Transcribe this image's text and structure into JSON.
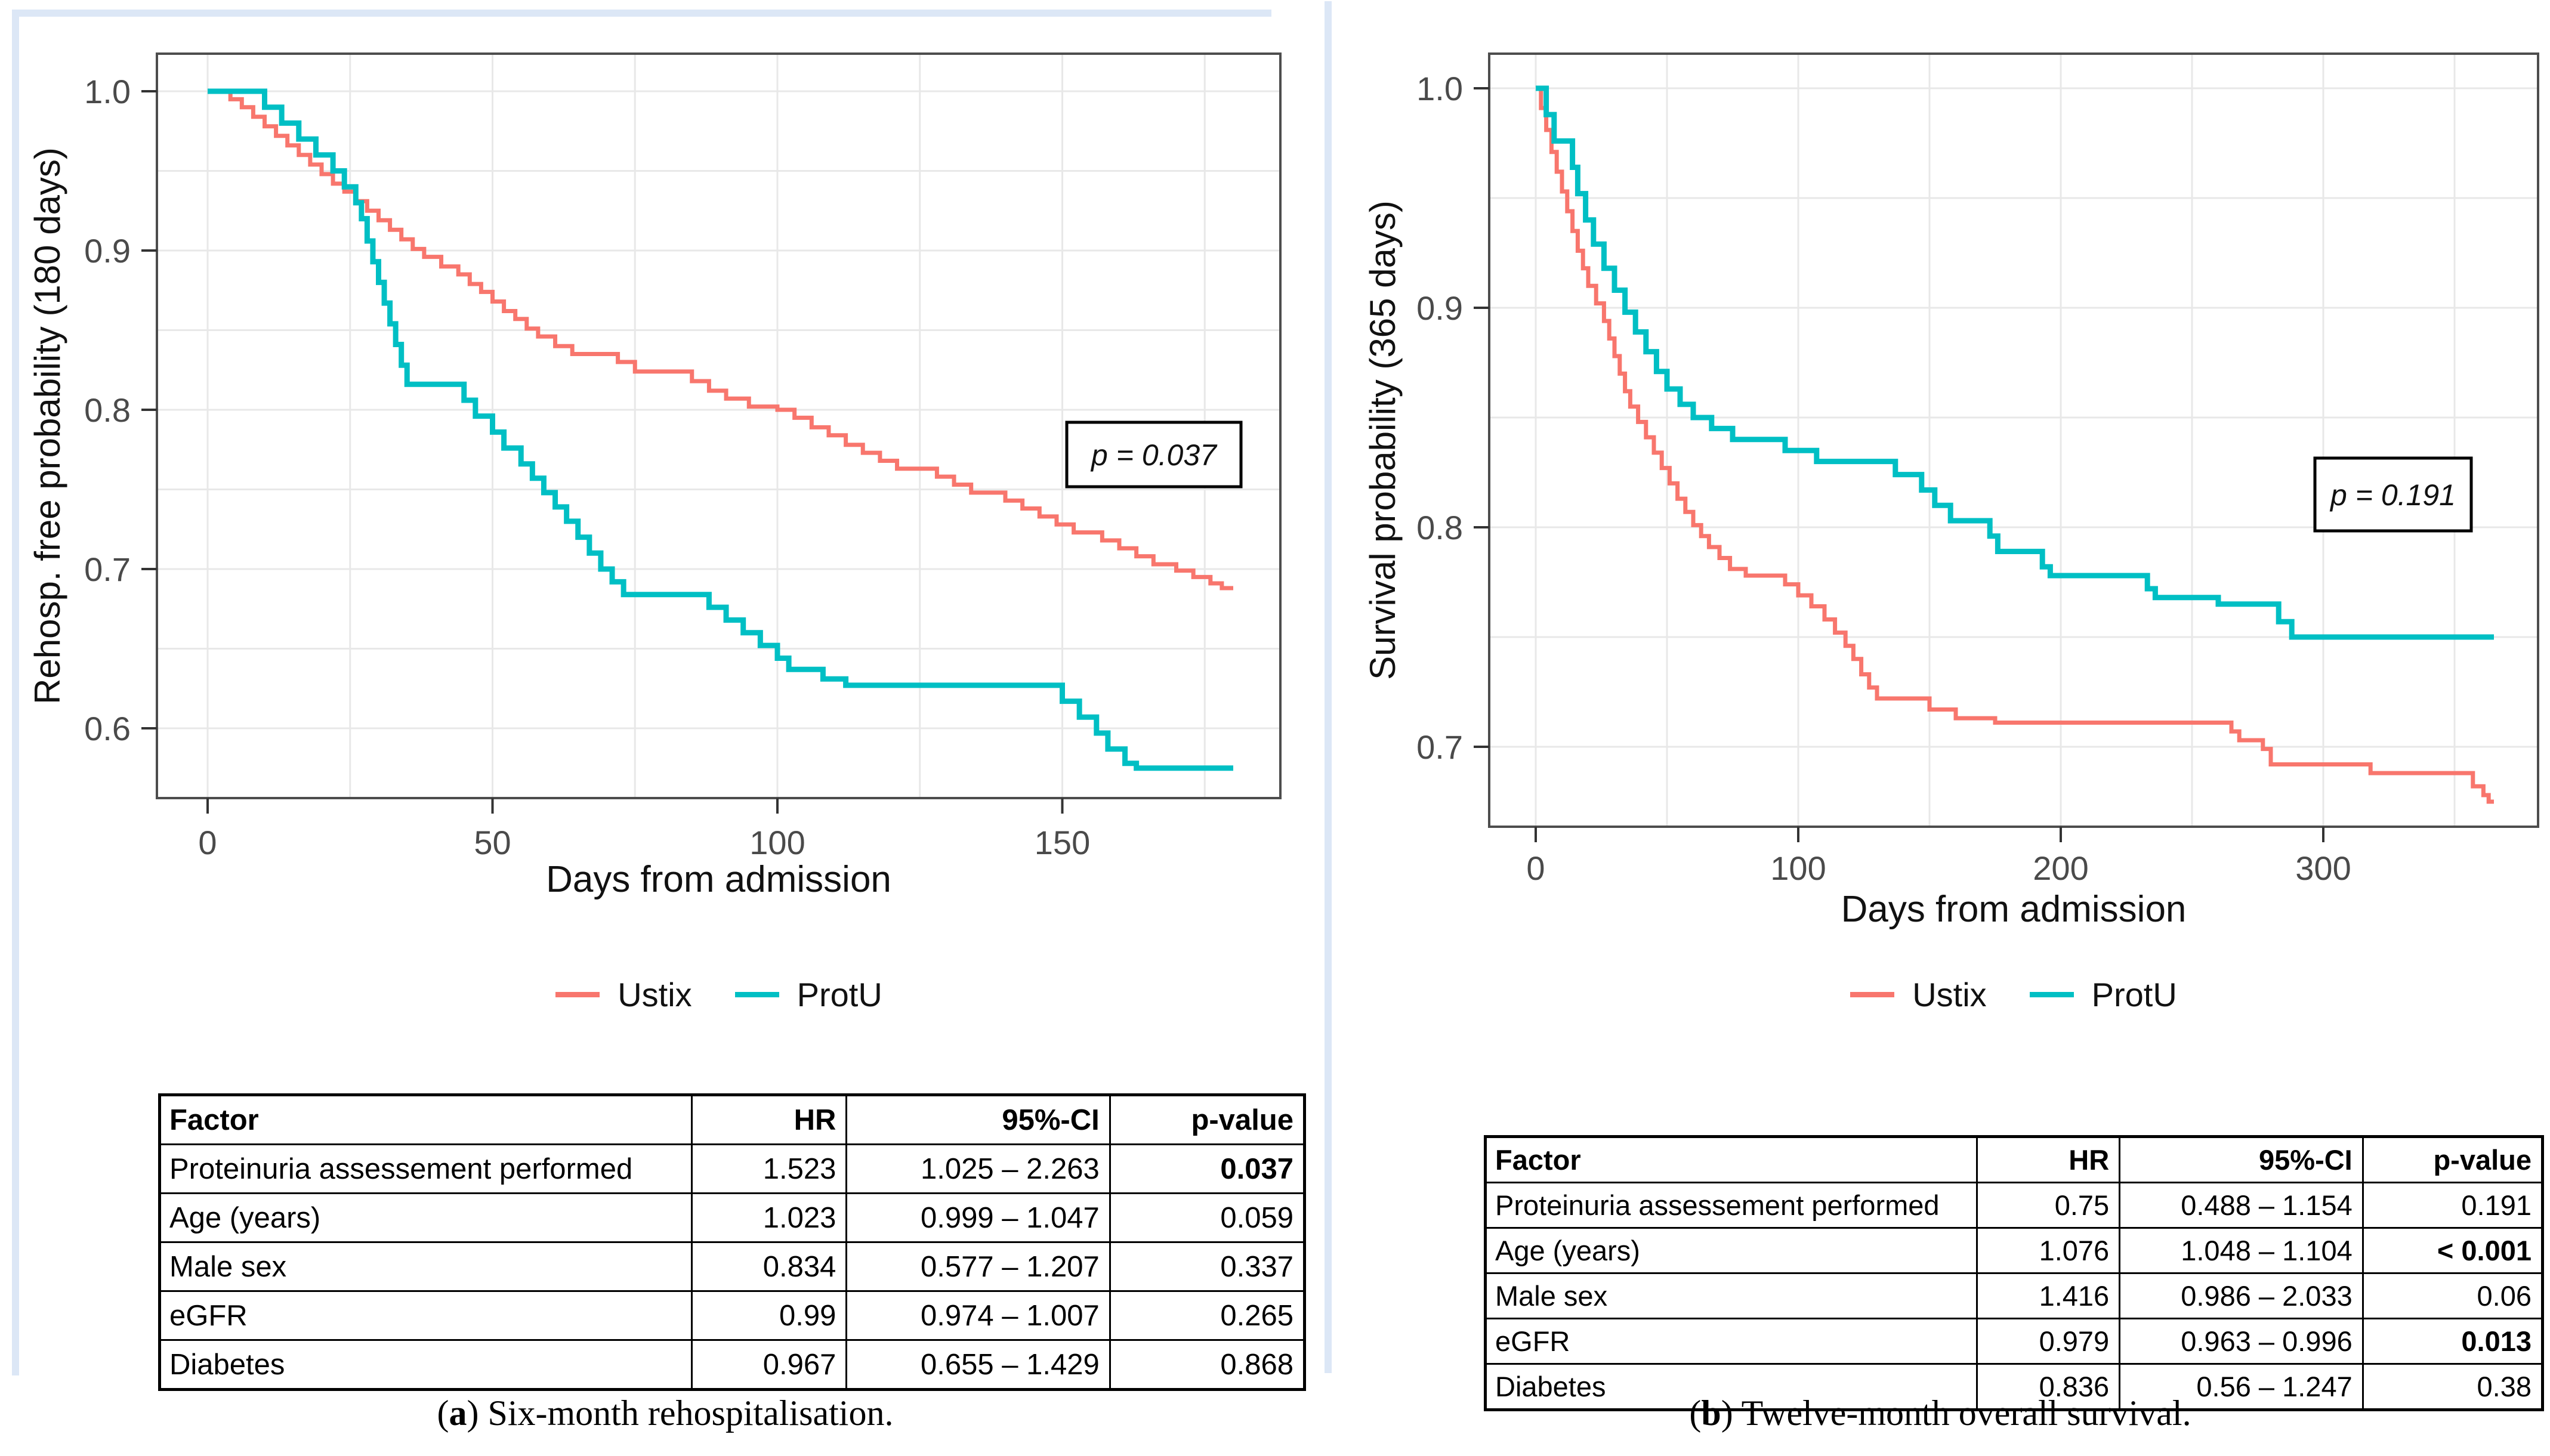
{
  "colors": {
    "ustix": "#F8766D",
    "protu": "#00BFC4",
    "grid": "#E8E8E8",
    "panel_border": "#4D4D4D",
    "tick": "#333333",
    "tick_text": "#4A4A4A",
    "title_text": "#111111",
    "highlight": "#DCE7F6"
  },
  "panels": [
    {
      "id": "a",
      "y_axis_title": "Rehosp. free probability (180 days)",
      "x_axis_title": "Days from admission",
      "x_tick_labels": [
        "0",
        "50",
        "100",
        "150"
      ],
      "y_tick_labels": [
        "1.0",
        "0.9",
        "0.8",
        "0.7",
        "0.6"
      ],
      "p_annotation": "p = 0.037",
      "legend": [
        {
          "label": "Ustix",
          "color_key": "ustix"
        },
        {
          "label": "ProtU",
          "color_key": "protu"
        }
      ],
      "caption": {
        "pre": "(",
        "letter": "a",
        "rest": ") Six-month rehospitalisation."
      },
      "table": {
        "headers": [
          "Factor",
          "HR",
          "95%-CI",
          "p-value"
        ],
        "rows": [
          [
            "Proteinuria assessement performed",
            "1.523",
            "1.025 – 2.263",
            "0.037"
          ],
          [
            "Age (years)",
            "1.023",
            "0.999 – 1.047",
            "0.059"
          ],
          [
            "Male sex",
            "0.834",
            "0.577 – 1.207",
            "0.337"
          ],
          [
            "eGFR",
            "0.99",
            "0.974 – 1.007",
            "0.265"
          ],
          [
            "Diabetes",
            "0.967",
            "0.655 – 1.429",
            "0.868"
          ]
        ],
        "bold_p_rows": [
          0
        ]
      }
    },
    {
      "id": "b",
      "y_axis_title": "Survival probability (365 days)",
      "x_axis_title": "Days from admission",
      "x_tick_labels": [
        "0",
        "100",
        "200",
        "300"
      ],
      "y_tick_labels": [
        "1.0",
        "0.9",
        "0.8",
        "0.7"
      ],
      "p_annotation": "p = 0.191",
      "legend": [
        {
          "label": "Ustix",
          "color_key": "ustix"
        },
        {
          "label": "ProtU",
          "color_key": "protu"
        }
      ],
      "caption": {
        "pre": "(",
        "letter": "b",
        "rest": ") Twelve-month overall survival."
      },
      "table": {
        "headers": [
          "Factor",
          "HR",
          "95%-CI",
          "p-value"
        ],
        "rows": [
          [
            "Proteinuria assessement performed",
            "0.75",
            "0.488 – 1.154",
            "0.191"
          ],
          [
            "Age (years)",
            "1.076",
            "1.048 – 1.104",
            "< 0.001"
          ],
          [
            "Male sex",
            "1.416",
            "0.986 – 2.033",
            "0.06"
          ],
          [
            "eGFR",
            "0.979",
            "0.963 – 0.996",
            "0.013"
          ],
          [
            "Diabetes",
            "0.836",
            "0.56 – 1.247",
            "0.38"
          ]
        ],
        "bold_p_rows": [
          1,
          3
        ]
      }
    }
  ],
  "chart_data": [
    {
      "type": "line",
      "subtype": "kaplan-meier-step",
      "title": "",
      "xlabel": "Days from admission",
      "ylabel": "Rehosp. free probability (180 days)",
      "xlim": [
        0,
        180
      ],
      "ylim": [
        0.575,
        1.0
      ],
      "x_major_ticks": [
        0,
        50,
        100,
        150
      ],
      "y_major_ticks": [
        1.0,
        0.9,
        0.8,
        0.7,
        0.6
      ],
      "grid": "on",
      "legend_position": "bottom",
      "annotation": "p = 0.037",
      "series": [
        {
          "name": "Ustix",
          "color_key": "ustix",
          "steps": [
            [
              0,
              1
            ],
            [
              4,
              0.995
            ],
            [
              6,
              0.99
            ],
            [
              8,
              0.984
            ],
            [
              10,
              0.978
            ],
            [
              12,
              0.972
            ],
            [
              14,
              0.966
            ],
            [
              16,
              0.96
            ],
            [
              18,
              0.954
            ],
            [
              20,
              0.948
            ],
            [
              22,
              0.942
            ],
            [
              24,
              0.937
            ],
            [
              26,
              0.931
            ],
            [
              28,
              0.925
            ],
            [
              30,
              0.919
            ],
            [
              32,
              0.913
            ],
            [
              34,
              0.907
            ],
            [
              36,
              0.901
            ],
            [
              38,
              0.896
            ],
            [
              41,
              0.89
            ],
            [
              44,
              0.885
            ],
            [
              46,
              0.879
            ],
            [
              48,
              0.874
            ],
            [
              50,
              0.868
            ],
            [
              52,
              0.862
            ],
            [
              54,
              0.857
            ],
            [
              56,
              0.851
            ],
            [
              58,
              0.846
            ],
            [
              61,
              0.84
            ],
            [
              64,
              0.835
            ],
            [
              72,
              0.83
            ],
            [
              75,
              0.824
            ],
            [
              85,
              0.818
            ],
            [
              88,
              0.812
            ],
            [
              91,
              0.807
            ],
            [
              95,
              0.802
            ],
            [
              100,
              0.8
            ],
            [
              103,
              0.795
            ],
            [
              106,
              0.789
            ],
            [
              109,
              0.784
            ],
            [
              112,
              0.778
            ],
            [
              115,
              0.773
            ],
            [
              118,
              0.768
            ],
            [
              121,
              0.763
            ],
            [
              128,
              0.758
            ],
            [
              131,
              0.753
            ],
            [
              134,
              0.748
            ],
            [
              140,
              0.743
            ],
            [
              143,
              0.738
            ],
            [
              146,
              0.733
            ],
            [
              149,
              0.728
            ],
            [
              152,
              0.723
            ],
            [
              157,
              0.718
            ],
            [
              160,
              0.713
            ],
            [
              163,
              0.708
            ],
            [
              166,
              0.703
            ],
            [
              170,
              0.699
            ],
            [
              173,
              0.695
            ],
            [
              176,
              0.691
            ],
            [
              178,
              0.688
            ],
            [
              180,
              0.688
            ]
          ]
        },
        {
          "name": "ProtU",
          "color_key": "protu",
          "steps": [
            [
              0,
              1
            ],
            [
              10,
              0.99
            ],
            [
              13,
              0.98
            ],
            [
              16,
              0.97
            ],
            [
              19,
              0.96
            ],
            [
              22,
              0.95
            ],
            [
              24,
              0.94
            ],
            [
              26,
              0.93
            ],
            [
              27,
              0.92
            ],
            [
              28,
              0.906
            ],
            [
              29,
              0.893
            ],
            [
              30,
              0.88
            ],
            [
              31,
              0.867
            ],
            [
              32,
              0.854
            ],
            [
              33,
              0.841
            ],
            [
              34,
              0.828
            ],
            [
              35,
              0.816
            ],
            [
              45,
              0.806
            ],
            [
              47,
              0.796
            ],
            [
              50,
              0.786
            ],
            [
              52,
              0.776
            ],
            [
              55,
              0.766
            ],
            [
              57,
              0.757
            ],
            [
              59,
              0.748
            ],
            [
              61,
              0.739
            ],
            [
              63,
              0.73
            ],
            [
              65,
              0.72
            ],
            [
              67,
              0.71
            ],
            [
              69,
              0.7
            ],
            [
              71,
              0.692
            ],
            [
              73,
              0.684
            ],
            [
              88,
              0.676
            ],
            [
              91,
              0.668
            ],
            [
              94,
              0.66
            ],
            [
              97,
              0.652
            ],
            [
              100,
              0.644
            ],
            [
              102,
              0.637
            ],
            [
              108,
              0.631
            ],
            [
              112,
              0.627
            ],
            [
              150,
              0.617
            ],
            [
              153,
              0.607
            ],
            [
              156,
              0.597
            ],
            [
              158,
              0.587
            ],
            [
              161,
              0.578
            ],
            [
              163,
              0.575
            ],
            [
              180,
              0.575
            ]
          ]
        }
      ]
    },
    {
      "type": "line",
      "subtype": "kaplan-meier-step",
      "title": "",
      "xlabel": "Days from admission",
      "ylabel": "Survival probability (365 days)",
      "xlim": [
        0,
        365
      ],
      "ylim": [
        0.675,
        1.0
      ],
      "x_major_ticks": [
        0,
        100,
        200,
        300
      ],
      "y_major_ticks": [
        1.0,
        0.9,
        0.8,
        0.7
      ],
      "grid": "on",
      "legend_position": "bottom",
      "annotation": "p = 0.191",
      "series": [
        {
          "name": "Ustix",
          "color_key": "ustix",
          "steps": [
            [
              0,
              1
            ],
            [
              2,
              0.991
            ],
            [
              4,
              0.981
            ],
            [
              6,
              0.971
            ],
            [
              8,
              0.962
            ],
            [
              10,
              0.953
            ],
            [
              12,
              0.944
            ],
            [
              14,
              0.935
            ],
            [
              16,
              0.926
            ],
            [
              18,
              0.918
            ],
            [
              20,
              0.91
            ],
            [
              23,
              0.902
            ],
            [
              26,
              0.894
            ],
            [
              28,
              0.886
            ],
            [
              30,
              0.878
            ],
            [
              32,
              0.87
            ],
            [
              34,
              0.862
            ],
            [
              36,
              0.855
            ],
            [
              39,
              0.848
            ],
            [
              42,
              0.841
            ],
            [
              45,
              0.834
            ],
            [
              48,
              0.827
            ],
            [
              51,
              0.82
            ],
            [
              54,
              0.813
            ],
            [
              57,
              0.807
            ],
            [
              60,
              0.801
            ],
            [
              63,
              0.796
            ],
            [
              66,
              0.791
            ],
            [
              70,
              0.786
            ],
            [
              74,
              0.781
            ],
            [
              80,
              0.778
            ],
            [
              95,
              0.774
            ],
            [
              100,
              0.769
            ],
            [
              105,
              0.764
            ],
            [
              110,
              0.758
            ],
            [
              114,
              0.752
            ],
            [
              118,
              0.746
            ],
            [
              121,
              0.74
            ],
            [
              124,
              0.733
            ],
            [
              127,
              0.727
            ],
            [
              130,
              0.722
            ],
            [
              150,
              0.717
            ],
            [
              160,
              0.713
            ],
            [
              175,
              0.711
            ],
            [
              265,
              0.707
            ],
            [
              268,
              0.703
            ],
            [
              277,
              0.699
            ],
            [
              280,
              0.692
            ],
            [
              318,
              0.688
            ],
            [
              357,
              0.682
            ],
            [
              361,
              0.678
            ],
            [
              363,
              0.675
            ],
            [
              365,
              0.675
            ]
          ]
        },
        {
          "name": "ProtU",
          "color_key": "protu",
          "steps": [
            [
              0,
              1
            ],
            [
              4,
              0.988
            ],
            [
              7,
              0.976
            ],
            [
              14,
              0.964
            ],
            [
              16,
              0.952
            ],
            [
              19,
              0.94
            ],
            [
              22,
              0.929
            ],
            [
              26,
              0.918
            ],
            [
              30,
              0.908
            ],
            [
              34,
              0.898
            ],
            [
              38,
              0.889
            ],
            [
              42,
              0.88
            ],
            [
              46,
              0.871
            ],
            [
              50,
              0.863
            ],
            [
              55,
              0.856
            ],
            [
              60,
              0.85
            ],
            [
              67,
              0.845
            ],
            [
              75,
              0.84
            ],
            [
              95,
              0.835
            ],
            [
              107,
              0.83
            ],
            [
              137,
              0.824
            ],
            [
              147,
              0.817
            ],
            [
              152,
              0.81
            ],
            [
              158,
              0.803
            ],
            [
              173,
              0.796
            ],
            [
              176,
              0.789
            ],
            [
              193,
              0.782
            ],
            [
              196,
              0.778
            ],
            [
              233,
              0.772
            ],
            [
              236,
              0.768
            ],
            [
              260,
              0.765
            ],
            [
              283,
              0.757
            ],
            [
              288,
              0.75
            ],
            [
              365,
              0.75
            ]
          ]
        }
      ]
    }
  ]
}
